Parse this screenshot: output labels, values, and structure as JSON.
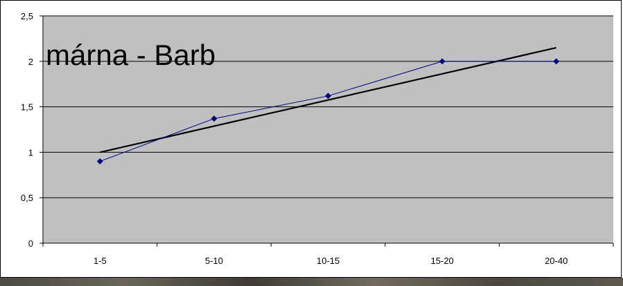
{
  "chart_data": {
    "type": "line",
    "title": "márna  - Barb",
    "categories": [
      "1-5",
      "5-10",
      "10-15",
      "15-20",
      "20-40"
    ],
    "series": [
      {
        "values": [
          0.9,
          1.37,
          1.62,
          2.0,
          2.0
        ],
        "color": "#000080",
        "marker": "diamond"
      }
    ],
    "trendline": {
      "type": "linear",
      "start": 1.0,
      "end": 2.15,
      "color": "#000000"
    },
    "ylim": [
      0,
      2.5
    ],
    "yticks": [
      "0",
      "0,5",
      "1",
      "1,5",
      "2",
      "2,5"
    ],
    "grid": true,
    "plot_background": "#c0c0c0",
    "legend": "none"
  }
}
